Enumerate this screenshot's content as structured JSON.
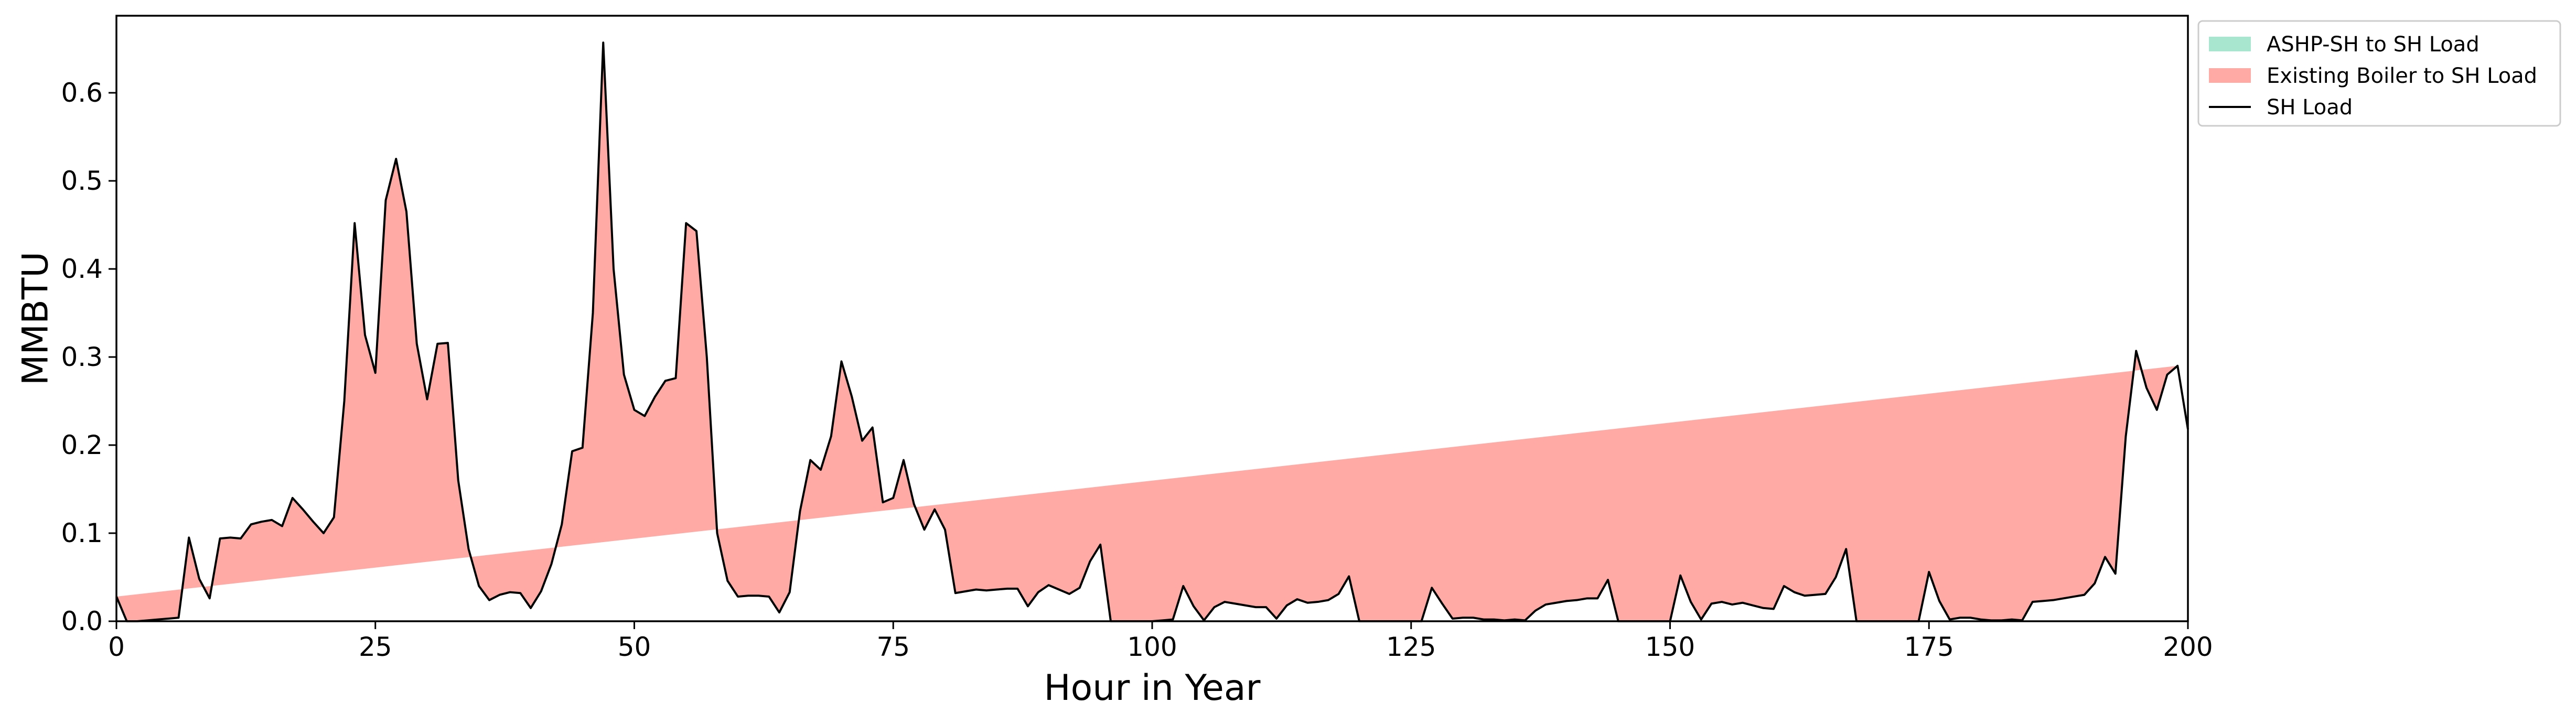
{
  "chart_data": {
    "type": "area",
    "xlabel": "Hour in Year",
    "ylabel": "MMBTU",
    "xlim": [
      0,
      200
    ],
    "ylim": [
      0,
      0.6875
    ],
    "xticks": [
      0,
      25,
      50,
      75,
      100,
      125,
      150,
      175,
      200
    ],
    "xtick_labels": [
      "0",
      "25",
      "50",
      "75",
      "100",
      "125",
      "150",
      "175",
      "200"
    ],
    "yticks": [
      0.0,
      0.1,
      0.2,
      0.3,
      0.4,
      0.5,
      0.6
    ],
    "ytick_labels": [
      "0.0",
      "0.1",
      "0.2",
      "0.3",
      "0.4",
      "0.5",
      "0.6"
    ],
    "grid": false,
    "legend_position": "outside-top-right",
    "colors": {
      "ashp": "#a8e6cf",
      "boiler": "#ffaaa5",
      "load": "#000000"
    },
    "series": [
      {
        "name": "ASHP-SH to SH Load",
        "kind": "stacked-area",
        "color": "#a8e6cf",
        "values": [
          0,
          0,
          0,
          0,
          0,
          0,
          0,
          0,
          0,
          0,
          0,
          0,
          0,
          0,
          0,
          0,
          0,
          0,
          0,
          0,
          0,
          0,
          0,
          0,
          0,
          0,
          0,
          0,
          0,
          0,
          0,
          0,
          0,
          0,
          0,
          0,
          0,
          0,
          0,
          0,
          0,
          0,
          0,
          0,
          0,
          0,
          0,
          0,
          0,
          0,
          0,
          0,
          0,
          0,
          0,
          0,
          0,
          0,
          0,
          0,
          0,
          0,
          0,
          0,
          0,
          0,
          0,
          0,
          0,
          0,
          0,
          0,
          0,
          0,
          0,
          0,
          0,
          0,
          0,
          0,
          0,
          0,
          0,
          0,
          0,
          0,
          0,
          0,
          0,
          0,
          0,
          0,
          0,
          0,
          0,
          0,
          0,
          0,
          0,
          0,
          0,
          0,
          0,
          0,
          0,
          0,
          0,
          0,
          0,
          0,
          0,
          0,
          0,
          0,
          0,
          0,
          0,
          0,
          0,
          0,
          0,
          0,
          0,
          0,
          0,
          0,
          0,
          0,
          0,
          0,
          0,
          0,
          0,
          0,
          0,
          0,
          0,
          0,
          0,
          0,
          0,
          0,
          0,
          0,
          0,
          0,
          0,
          0,
          0,
          0,
          0,
          0,
          0,
          0,
          0,
          0,
          0,
          0,
          0,
          0,
          0,
          0,
          0,
          0,
          0,
          0,
          0,
          0,
          0,
          0,
          0,
          0,
          0,
          0,
          0,
          0,
          0,
          0,
          0,
          0,
          0,
          0,
          0,
          0,
          0,
          0,
          0,
          0,
          0,
          0,
          0,
          0,
          0,
          0,
          0,
          0,
          0,
          0,
          0,
          0
        ]
      },
      {
        "name": "Existing Boiler to SH Load",
        "kind": "stacked-area",
        "color": "#ffaaa5",
        "values": [
          0.028,
          0,
          0,
          0.001,
          0.002,
          0.003,
          0.004,
          0.095,
          0.048,
          0.026,
          0.094,
          0.095,
          0.094,
          0.11,
          0.113,
          0.115,
          0.108,
          0.14,
          0.127,
          0.113,
          0.1,
          0.118,
          0.25,
          0.452,
          0.325,
          0.282,
          0.478,
          0.525,
          0.465,
          0.315,
          0.252,
          0.315,
          0.316,
          0.16,
          0.082,
          0.04,
          0.024,
          0.03,
          0.033,
          0.032,
          0.015,
          0.034,
          0.065,
          0.11,
          0.193,
          0.197,
          0.35,
          0.657,
          0.4,
          0.28,
          0.24,
          0.233,
          0.255,
          0.273,
          0.276,
          0.452,
          0.443,
          0.3,
          0.1,
          0.046,
          0.028,
          0.029,
          0.029,
          0.028,
          0.01,
          0.033,
          0.125,
          0.183,
          0.172,
          0.21,
          0.295,
          0.255,
          0.205,
          0.22,
          0.135,
          0.14,
          0.183,
          0.133,
          0.104,
          0.127,
          0.104,
          0.032,
          0.034,
          0.036,
          0.035,
          0.036,
          0.037,
          0.037,
          0.017,
          0.033,
          0.041,
          0.036,
          0.031,
          0.038,
          0.068,
          0.087,
          0,
          0,
          0,
          0,
          0,
          0.001,
          0.002,
          0.04,
          0.017,
          0.001,
          0.016,
          0.022,
          0.02,
          0.018,
          0.016,
          0.016,
          0.003,
          0.018,
          0.025,
          0.021,
          0.022,
          0.024,
          0.031,
          0.051,
          0,
          0,
          0,
          0,
          0,
          0,
          0,
          0.038,
          0.02,
          0.003,
          0.004,
          0.004,
          0.002,
          0.002,
          0.001,
          0.002,
          0.001,
          0.012,
          0.019,
          0.021,
          0.023,
          0.024,
          0.026,
          0.026,
          0.047,
          0,
          0,
          0,
          0,
          0,
          0,
          0.052,
          0.022,
          0.002,
          0.02,
          0.022,
          0.019,
          0.021,
          0.018,
          0.015,
          0.014,
          0.04,
          0.033,
          0.029,
          0.03,
          0.031,
          0.05,
          0.082,
          0,
          0,
          0,
          0,
          0,
          0,
          0,
          0.056,
          0.023,
          0.002,
          0.004,
          0.004,
          0.002,
          0.001,
          0.001,
          0.002,
          0.001,
          0.022,
          0.023,
          0.024,
          0.026,
          0.028,
          0.03,
          0.043,
          0.073,
          0.054,
          0.21,
          0.307,
          0.265,
          0.24,
          0.28,
          0.29,
          0.218
        ]
      },
      {
        "name": "SH Load",
        "kind": "line",
        "color": "#000000",
        "values": [
          0.028,
          0,
          0,
          0.001,
          0.002,
          0.003,
          0.004,
          0.095,
          0.048,
          0.026,
          0.094,
          0.095,
          0.094,
          0.11,
          0.113,
          0.115,
          0.108,
          0.14,
          0.127,
          0.113,
          0.1,
          0.118,
          0.25,
          0.452,
          0.325,
          0.282,
          0.478,
          0.525,
          0.465,
          0.315,
          0.252,
          0.315,
          0.316,
          0.16,
          0.082,
          0.04,
          0.024,
          0.03,
          0.033,
          0.032,
          0.015,
          0.034,
          0.065,
          0.11,
          0.193,
          0.197,
          0.35,
          0.657,
          0.4,
          0.28,
          0.24,
          0.233,
          0.255,
          0.273,
          0.276,
          0.452,
          0.443,
          0.3,
          0.1,
          0.046,
          0.028,
          0.029,
          0.029,
          0.028,
          0.01,
          0.033,
          0.125,
          0.183,
          0.172,
          0.21,
          0.295,
          0.255,
          0.205,
          0.22,
          0.135,
          0.14,
          0.183,
          0.133,
          0.104,
          0.127,
          0.104,
          0.032,
          0.034,
          0.036,
          0.035,
          0.036,
          0.037,
          0.037,
          0.017,
          0.033,
          0.041,
          0.036,
          0.031,
          0.038,
          0.068,
          0.087,
          0,
          0,
          0,
          0,
          0,
          0.001,
          0.002,
          0.04,
          0.017,
          0.001,
          0.016,
          0.022,
          0.02,
          0.018,
          0.016,
          0.016,
          0.003,
          0.018,
          0.025,
          0.021,
          0.022,
          0.024,
          0.031,
          0.051,
          0,
          0,
          0,
          0,
          0,
          0,
          0,
          0.038,
          0.02,
          0.003,
          0.004,
          0.004,
          0.002,
          0.002,
          0.001,
          0.002,
          0.001,
          0.012,
          0.019,
          0.021,
          0.023,
          0.024,
          0.026,
          0.026,
          0.047,
          0,
          0,
          0,
          0,
          0,
          0,
          0.052,
          0.022,
          0.002,
          0.02,
          0.022,
          0.019,
          0.021,
          0.018,
          0.015,
          0.014,
          0.04,
          0.033,
          0.029,
          0.03,
          0.031,
          0.05,
          0.082,
          0,
          0,
          0,
          0,
          0,
          0,
          0,
          0.056,
          0.023,
          0.002,
          0.004,
          0.004,
          0.002,
          0.001,
          0.001,
          0.002,
          0.001,
          0.022,
          0.023,
          0.024,
          0.026,
          0.028,
          0.03,
          0.043,
          0.073,
          0.054,
          0.21,
          0.307,
          0.265,
          0.24,
          0.28,
          0.29,
          0.218
        ]
      }
    ]
  }
}
